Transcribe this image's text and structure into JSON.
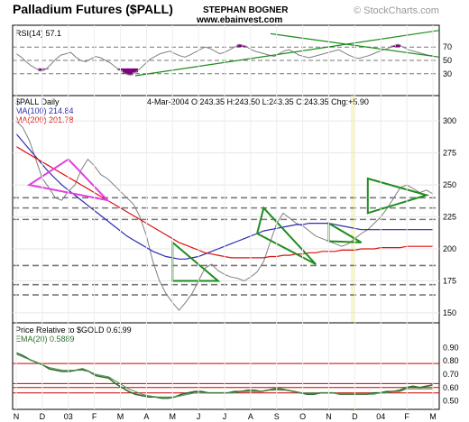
{
  "header": {
    "title": "Palladium Futures ($PALL)",
    "author": "STEPHAN BOGNER",
    "website": "www.ebainvest.com",
    "watermark": "© StockCharts.com"
  },
  "colors": {
    "price": "#808080",
    "ma100": "#2b2bb3",
    "ma200": "#dd1111",
    "rsi_fill": "#800080",
    "rsi_line": "#808080",
    "rsi_trend": "#1a8c1a",
    "pattern_green": "#1f8c1f",
    "pattern_magenta": "#e040e0",
    "dashed": "#777777",
    "ratio_line": "#2f6f2f",
    "ema_line": "#4f8f4f",
    "red_level": "#cc0000",
    "dec_marker": "#f2f2a0",
    "panel_bg": "#ffffff",
    "border": "#000000"
  },
  "chart_data": [
    {
      "type": "line",
      "panel": "RSI",
      "label": "RSI(14)",
      "last_value": "57.1",
      "y_ticks": [
        "70",
        "50",
        "30"
      ],
      "ylim": [
        0,
        100
      ],
      "reference_lines": [
        70,
        50,
        30
      ],
      "series": [
        {
          "values": [
            60,
            55,
            48,
            42,
            38,
            34,
            37,
            44,
            52,
            58,
            60,
            62,
            55,
            50,
            48,
            52,
            56,
            54,
            50,
            46,
            40,
            35,
            30,
            28,
            32,
            38,
            45,
            52,
            56,
            60,
            62,
            64,
            60,
            57,
            55,
            58,
            62,
            66,
            70,
            68,
            64,
            60,
            62,
            66,
            70,
            74,
            72,
            68,
            64,
            62,
            60,
            58,
            56,
            60,
            64,
            66,
            62,
            58,
            56,
            54,
            56,
            58,
            60,
            62,
            64,
            66,
            62,
            58,
            55,
            53,
            55,
            57,
            60,
            63,
            66,
            68,
            72,
            74,
            70,
            66,
            64,
            62,
            60,
            58,
            57
          ]
        }
      ]
    },
    {
      "type": "line",
      "panel": "Price",
      "label": "$PALL Daily",
      "ohlc_label": "4-Mar-2004 O:243.35 H:243.50 L:243.35 C:243.35 Chg:+5.90",
      "y_ticks": [
        "300",
        "275",
        "250",
        "225",
        "200",
        "175",
        "150"
      ],
      "ylim": [
        145,
        310
      ],
      "x_ticks": [
        "N",
        "D",
        "03",
        "F",
        "M",
        "A",
        "M",
        "J",
        "J",
        "A",
        "S",
        "O",
        "N",
        "D",
        "04",
        "F",
        "M"
      ],
      "legend": [
        {
          "name": "MA(100)",
          "value": "214.84"
        },
        {
          "name": "MA(200)",
          "value": "201.78"
        }
      ],
      "series": [
        {
          "name": "$PALL Daily",
          "values": [
            300,
            295,
            285,
            270,
            255,
            248,
            240,
            238,
            245,
            250,
            262,
            270,
            265,
            258,
            255,
            250,
            245,
            240,
            235,
            225,
            210,
            190,
            175,
            165,
            158,
            152,
            158,
            165,
            175,
            185,
            188,
            183,
            180,
            178,
            177,
            175,
            178,
            182,
            190,
            205,
            220,
            228,
            224,
            220,
            218,
            214,
            210,
            208,
            206,
            204,
            202,
            204,
            208,
            212,
            215,
            220,
            225,
            232,
            240,
            248,
            250,
            247,
            244,
            246,
            243
          ]
        },
        {
          "name": "MA(100)",
          "values": [
            290,
            284,
            278,
            272,
            266,
            260,
            255,
            250,
            246,
            242,
            238,
            234,
            230,
            226,
            222,
            218,
            214,
            210,
            207,
            204,
            201,
            198,
            196,
            194,
            193,
            192,
            192,
            193,
            194,
            196,
            198,
            200,
            202,
            204,
            206,
            208,
            210,
            212,
            214,
            215,
            216,
            217,
            218,
            219,
            219,
            220,
            220,
            220,
            220,
            219,
            218,
            217,
            216,
            215,
            215,
            215,
            215,
            215,
            215,
            215,
            215,
            215,
            215,
            215,
            215
          ]
        },
        {
          "name": "MA(200)",
          "values": [
            280,
            277,
            274,
            271,
            268,
            265,
            262,
            259,
            256,
            253,
            250,
            247,
            244,
            241,
            238,
            235,
            232,
            229,
            226,
            223,
            220,
            217,
            214,
            211,
            208,
            205,
            203,
            201,
            199,
            197,
            196,
            195,
            194,
            193,
            193,
            193,
            193,
            193,
            193,
            194,
            194,
            195,
            195,
            196,
            196,
            197,
            197,
            198,
            198,
            198,
            199,
            199,
            199,
            200,
            200,
            200,
            201,
            201,
            201,
            201,
            202,
            202,
            202,
            202,
            202
          ]
        }
      ],
      "horizontal_levels": [
        240,
        232,
        223,
        187,
        172,
        164
      ],
      "patterns": [
        {
          "kind": "triangle",
          "color": "magenta",
          "points": [
            [
              2,
              250
            ],
            [
              8,
              270
            ],
            [
              14,
              238
            ]
          ]
        },
        {
          "kind": "triangle",
          "color": "green",
          "points": [
            [
              24,
              205
            ],
            [
              31,
              175
            ],
            [
              24,
              175
            ]
          ]
        },
        {
          "kind": "triangle",
          "color": "green",
          "points": [
            [
              38,
              232
            ],
            [
              46,
              188
            ],
            [
              37,
              212
            ]
          ]
        },
        {
          "kind": "triangle",
          "color": "green",
          "points": [
            [
              48,
              220
            ],
            [
              53,
              205
            ],
            [
              48,
              206
            ]
          ]
        },
        {
          "kind": "triangle",
          "color": "green",
          "points": [
            [
              54,
              255
            ],
            [
              63,
              242
            ],
            [
              54,
              228
            ]
          ]
        }
      ]
    },
    {
      "type": "line",
      "panel": "Relative",
      "label": "Price Relative to $GOLD",
      "last_value": "0.6199",
      "ema_label": "EMA(20)",
      "ema_value": "0.5889",
      "y_ticks": [
        "0.90",
        "0.80",
        "0.70",
        "0.60",
        "0.50"
      ],
      "ylim": [
        0.45,
        0.95
      ],
      "reference_lines": [
        0.78,
        0.63,
        0.6,
        0.56
      ],
      "series": [
        {
          "name": "Price Relative to $GOLD",
          "values": [
            0.86,
            0.84,
            0.81,
            0.79,
            0.77,
            0.74,
            0.73,
            0.72,
            0.72,
            0.73,
            0.74,
            0.72,
            0.69,
            0.68,
            0.67,
            0.63,
            0.6,
            0.57,
            0.55,
            0.54,
            0.53,
            0.53,
            0.52,
            0.52,
            0.53,
            0.55,
            0.56,
            0.57,
            0.57,
            0.56,
            0.56,
            0.56,
            0.56,
            0.57,
            0.57,
            0.58,
            0.58,
            0.57,
            0.58,
            0.59,
            0.59,
            0.58,
            0.57,
            0.56,
            0.55,
            0.55,
            0.56,
            0.56,
            0.56,
            0.55,
            0.55,
            0.55,
            0.55,
            0.55,
            0.56,
            0.56,
            0.57,
            0.57,
            0.58,
            0.6,
            0.61,
            0.6,
            0.61,
            0.62
          ]
        },
        {
          "name": "EMA(20)",
          "values": [
            0.85,
            0.83,
            0.81,
            0.79,
            0.77,
            0.75,
            0.74,
            0.73,
            0.73,
            0.73,
            0.73,
            0.72,
            0.7,
            0.69,
            0.68,
            0.65,
            0.62,
            0.59,
            0.57,
            0.55,
            0.54,
            0.53,
            0.53,
            0.53,
            0.53,
            0.54,
            0.55,
            0.56,
            0.56,
            0.56,
            0.56,
            0.56,
            0.56,
            0.56,
            0.57,
            0.57,
            0.57,
            0.57,
            0.58,
            0.58,
            0.58,
            0.58,
            0.57,
            0.56,
            0.56,
            0.56,
            0.56,
            0.56,
            0.56,
            0.55,
            0.55,
            0.55,
            0.55,
            0.55,
            0.55,
            0.56,
            0.56,
            0.57,
            0.57,
            0.59,
            0.59,
            0.59,
            0.59,
            0.59
          ]
        }
      ]
    }
  ]
}
